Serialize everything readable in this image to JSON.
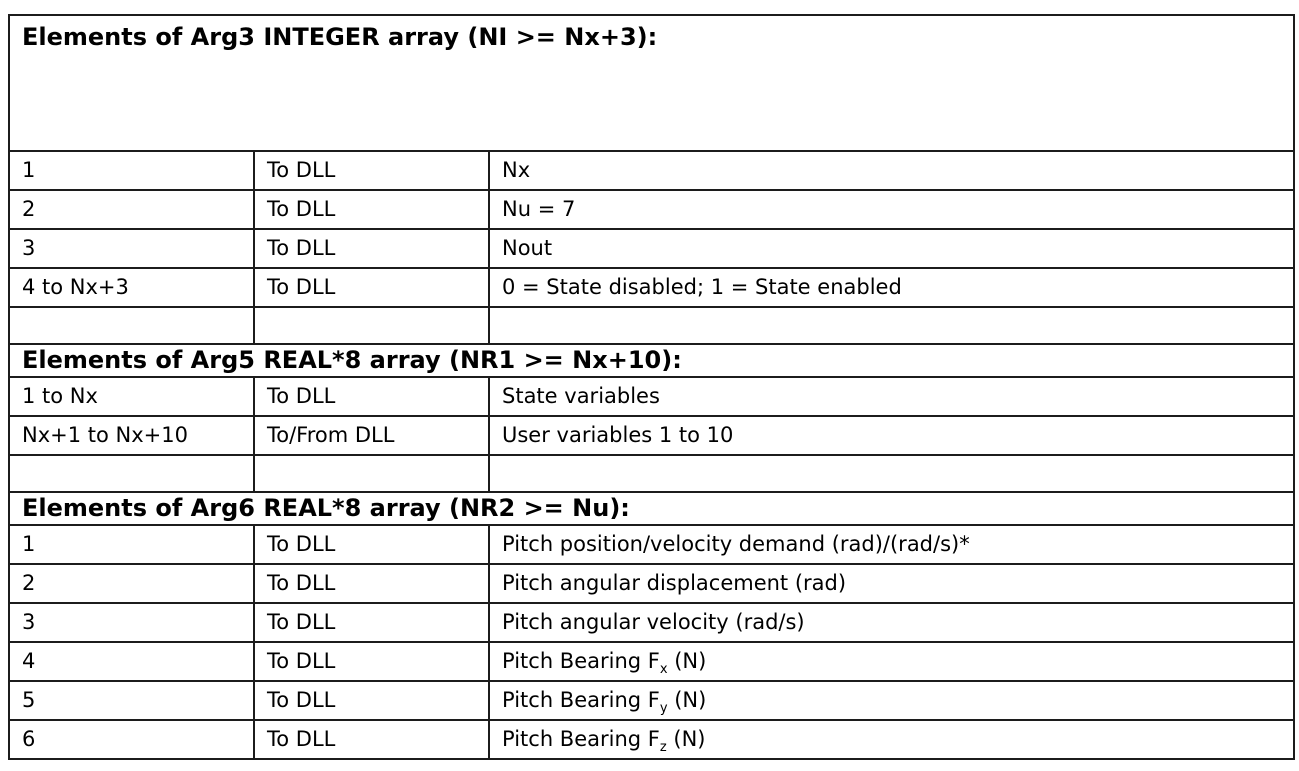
{
  "table": {
    "sections": [
      {
        "header": "Elements of Arg3 INTEGER array (NI >= Nx+3):",
        "rows": [
          {
            "id": "1",
            "dir": "To DLL",
            "desc": "Nx"
          },
          {
            "id": "2",
            "dir": "To DLL",
            "desc": "Nu = 7"
          },
          {
            "id": "3",
            "dir": "To DLL",
            "desc": "Nout"
          },
          {
            "id": "4 to Nx+3",
            "dir": "To DLL",
            "desc": "0 = State disabled; 1 = State enabled"
          },
          {
            "id": "",
            "dir": "",
            "desc": ""
          }
        ]
      },
      {
        "header": "Elements of Arg5 REAL*8 array (NR1 >= Nx+10):",
        "rows": [
          {
            "id": "1 to Nx",
            "dir": "To DLL",
            "desc": "State variables"
          },
          {
            "id": "Nx+1 to Nx+10",
            "dir": "To/From DLL",
            "desc": "User variables 1 to 10"
          },
          {
            "id": "",
            "dir": "",
            "desc": ""
          }
        ]
      },
      {
        "header": "Elements of Arg6 REAL*8 array (NR2 >= Nu):",
        "rows": [
          {
            "id": "1",
            "dir": "To DLL",
            "desc": "Pitch position/velocity demand (rad)/(rad/s)*"
          },
          {
            "id": "2",
            "dir": "To DLL",
            "desc": "Pitch angular displacement (rad)"
          },
          {
            "id": "3",
            "dir": "To DLL",
            "desc": "Pitch angular velocity (rad/s)"
          },
          {
            "id": "4",
            "dir": "To DLL",
            "desc_pre": "Pitch Bearing F",
            "desc_sub": "x",
            "desc_post": " (N)"
          },
          {
            "id": "5",
            "dir": "To DLL",
            "desc_pre": "Pitch Bearing F",
            "desc_sub": "y",
            "desc_post": " (N)"
          },
          {
            "id": "6",
            "dir": "To DLL",
            "desc_pre": "Pitch Bearing F",
            "desc_sub": "z",
            "desc_post": " (N)"
          }
        ]
      }
    ]
  }
}
